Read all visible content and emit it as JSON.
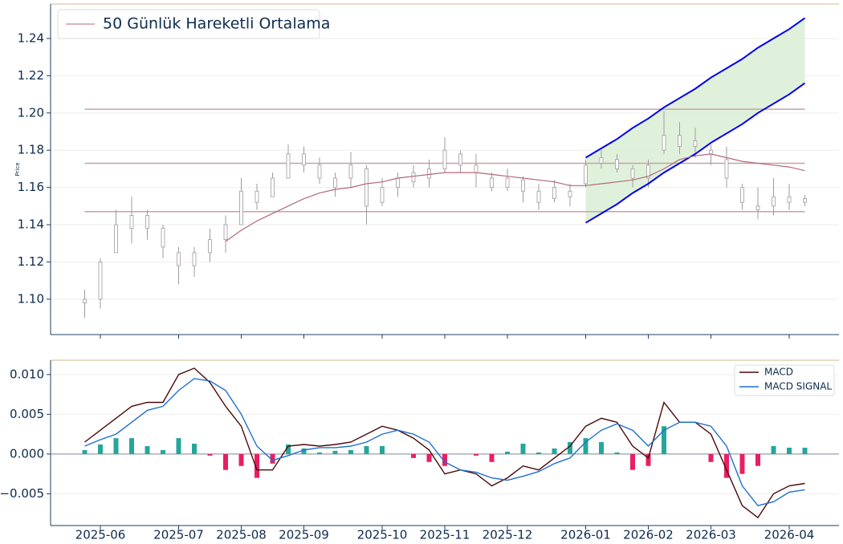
{
  "chart_data": [
    {
      "type": "candlestick",
      "ylabel": "Price",
      "open": [
        1.098,
        1.1,
        1.125,
        1.138,
        1.145,
        1.138,
        1.125,
        1.118,
        1.125,
        1.132,
        1.14,
        1.158,
        1.155,
        1.165,
        1.178,
        1.172,
        1.165,
        1.165,
        1.17,
        1.152,
        1.16,
        1.163,
        1.165,
        1.17,
        1.178,
        1.172,
        1.165,
        1.16,
        1.164,
        1.158,
        1.154,
        1.158,
        1.162,
        1.173,
        1.175,
        1.17,
        1.165,
        1.18,
        1.188,
        1.182,
        1.18,
        1.175,
        1.16,
        1.15,
        1.15,
        1.155,
        1.152
      ],
      "high": [
        1.105,
        1.122,
        1.148,
        1.155,
        1.148,
        1.14,
        1.128,
        1.128,
        1.138,
        1.145,
        1.165,
        1.162,
        1.168,
        1.183,
        1.182,
        1.176,
        1.168,
        1.179,
        1.172,
        1.165,
        1.168,
        1.172,
        1.175,
        1.187,
        1.18,
        1.178,
        1.168,
        1.17,
        1.166,
        1.162,
        1.164,
        1.162,
        1.175,
        1.18,
        1.178,
        1.172,
        1.175,
        1.201,
        1.195,
        1.192,
        1.183,
        1.182,
        1.162,
        1.16,
        1.165,
        1.162,
        1.156
      ],
      "low": [
        1.09,
        1.095,
        1.125,
        1.13,
        1.132,
        1.122,
        1.108,
        1.112,
        1.12,
        1.125,
        1.14,
        1.148,
        1.155,
        1.165,
        1.168,
        1.162,
        1.155,
        1.16,
        1.14,
        1.15,
        1.155,
        1.16,
        1.16,
        1.168,
        1.168,
        1.16,
        1.158,
        1.158,
        1.152,
        1.148,
        1.152,
        1.15,
        1.16,
        1.17,
        1.168,
        1.16,
        1.16,
        1.178,
        1.178,
        1.176,
        1.172,
        1.16,
        1.148,
        1.143,
        1.145,
        1.148,
        1.15
      ],
      "close": [
        1.1,
        1.12,
        1.14,
        1.145,
        1.138,
        1.128,
        1.118,
        1.125,
        1.132,
        1.14,
        1.158,
        1.152,
        1.165,
        1.178,
        1.172,
        1.165,
        1.16,
        1.172,
        1.15,
        1.16,
        1.165,
        1.168,
        1.17,
        1.18,
        1.172,
        1.168,
        1.16,
        1.165,
        1.158,
        1.152,
        1.16,
        1.155,
        1.172,
        1.176,
        1.17,
        1.165,
        1.172,
        1.188,
        1.182,
        1.185,
        1.178,
        1.165,
        1.152,
        1.148,
        1.155,
        1.152,
        1.154
      ],
      "candle_color": "#a09aa0",
      "series": [
        {
          "name": "50 Günlük Hareketli Ortalama",
          "color": "#b0687a",
          "values": [
            null,
            null,
            null,
            null,
            null,
            null,
            null,
            null,
            null,
            1.131,
            1.137,
            1.142,
            1.146,
            1.15,
            1.154,
            1.157,
            1.159,
            1.16,
            1.162,
            1.163,
            1.165,
            1.166,
            1.167,
            1.168,
            1.168,
            1.168,
            1.167,
            1.166,
            1.165,
            1.164,
            1.163,
            1.161,
            1.161,
            1.162,
            1.163,
            1.164,
            1.166,
            1.17,
            1.175,
            1.177,
            1.178,
            1.176,
            1.174,
            1.173,
            1.172,
            1.171,
            1.169
          ]
        }
      ],
      "levels": [
        1.202,
        1.173,
        1.147
      ],
      "level_color": "#c9a0a8",
      "channel_upper": [
        null,
        null,
        null,
        null,
        null,
        null,
        null,
        null,
        null,
        null,
        null,
        null,
        null,
        null,
        null,
        null,
        null,
        null,
        null,
        null,
        null,
        null,
        null,
        null,
        null,
        null,
        null,
        null,
        null,
        null,
        null,
        null,
        1.176,
        1.181,
        1.186,
        1.192,
        1.197,
        1.203,
        1.208,
        1.213,
        1.219,
        1.224,
        1.229,
        1.235,
        1.24,
        1.245,
        1.251
      ],
      "channel_lower": [
        null,
        null,
        null,
        null,
        null,
        null,
        null,
        null,
        null,
        null,
        null,
        null,
        null,
        null,
        null,
        null,
        null,
        null,
        null,
        null,
        null,
        null,
        null,
        null,
        null,
        null,
        null,
        null,
        null,
        null,
        null,
        null,
        1.141,
        1.146,
        1.151,
        1.157,
        1.162,
        1.168,
        1.173,
        1.178,
        1.184,
        1.189,
        1.194,
        1.2,
        1.205,
        1.21,
        1.216
      ],
      "channel_color": "#0000ee",
      "channel_fill": "#dcefd6",
      "ylim": [
        1.081,
        1.2585
      ],
      "yticks": [
        {
          "value": 1.1,
          "label": "1.10"
        },
        1.12,
        1.14,
        1.16,
        1.18,
        {
          "value": 1.2,
          "label": "1.20"
        },
        1.22,
        1.24
      ],
      "grid": true,
      "legend": "upper left"
    },
    {
      "type": "macd",
      "categories": [
        null,
        "2025-06",
        null,
        null,
        null,
        null,
        "2025-07",
        null,
        null,
        null,
        "2025-08",
        null,
        null,
        null,
        "2025-09",
        null,
        null,
        null,
        null,
        "2025-10",
        null,
        null,
        null,
        "2025-11",
        null,
        null,
        null,
        "2025-12",
        null,
        null,
        null,
        null,
        "2026-01",
        null,
        null,
        null,
        "2026-02",
        null,
        null,
        null,
        "2026-03",
        null,
        null,
        null,
        null,
        "2026-04",
        null
      ],
      "series": [
        {
          "name": "MACD",
          "color": "#4a0a0a",
          "values": [
            0.0015,
            0.003,
            0.0045,
            0.006,
            0.0065,
            0.0065,
            0.01,
            0.0108,
            0.009,
            0.006,
            0.0035,
            -0.002,
            -0.002,
            0.001,
            0.0012,
            0.001,
            0.0012,
            0.0015,
            0.0025,
            0.0035,
            0.003,
            0.002,
            0.0005,
            -0.0025,
            -0.002,
            -0.0025,
            -0.004,
            -0.003,
            -0.0015,
            -0.002,
            -0.0005,
            0.001,
            0.0035,
            0.0045,
            0.004,
            0.001,
            -0.0005,
            0.0065,
            0.004,
            0.004,
            0.0025,
            -0.002,
            -0.0065,
            -0.008,
            -0.005,
            -0.004,
            -0.0037
          ]
        },
        {
          "name": "MACD SIGNAL",
          "color": "#1f6fd0",
          "values": [
            0.001,
            0.0018,
            0.0025,
            0.004,
            0.0055,
            0.006,
            0.008,
            0.0095,
            0.0092,
            0.008,
            0.005,
            0.001,
            -0.0008,
            -0.0002,
            0.0005,
            0.0008,
            0.0008,
            0.001,
            0.0015,
            0.0025,
            0.003,
            0.0025,
            0.0015,
            -0.001,
            -0.002,
            -0.0023,
            -0.003,
            -0.0033,
            -0.0028,
            -0.0022,
            -0.0012,
            -0.0005,
            0.0015,
            0.003,
            0.0038,
            0.003,
            0.001,
            0.003,
            0.004,
            0.004,
            0.0035,
            0.001,
            -0.004,
            -0.0065,
            -0.006,
            -0.0048,
            -0.0045
          ]
        }
      ],
      "histogram": [
        0.0005,
        0.0012,
        0.002,
        0.002,
        0.001,
        0.0005,
        0.002,
        0.0013,
        -0.0002,
        -0.002,
        -0.0015,
        -0.003,
        -0.0012,
        0.0012,
        0.0007,
        0.0002,
        0.0004,
        0.0005,
        0.001,
        0.001,
        0,
        -0.0005,
        -0.001,
        -0.0015,
        0,
        -0.0002,
        -0.001,
        0.0003,
        0.0013,
        0.0002,
        0.0007,
        0.0015,
        0.002,
        0.0015,
        0.0002,
        -0.002,
        -0.0015,
        0.0035,
        0,
        0,
        -0.001,
        -0.003,
        -0.0025,
        -0.0015,
        0.001,
        0.0008,
        0.0008
      ],
      "positive_color": "#26a69a",
      "negative_color": "#e91e63",
      "ylim": [
        -0.009,
        0.0118
      ],
      "yticks": [
        {
          "value": 0.01,
          "label": "0.010"
        },
        0.005,
        {
          "value": 0,
          "label": "0.000"
        },
        {
          "value": -0.005,
          "label": "−0.005"
        }
      ],
      "grid": true,
      "legend": "upper right"
    }
  ]
}
